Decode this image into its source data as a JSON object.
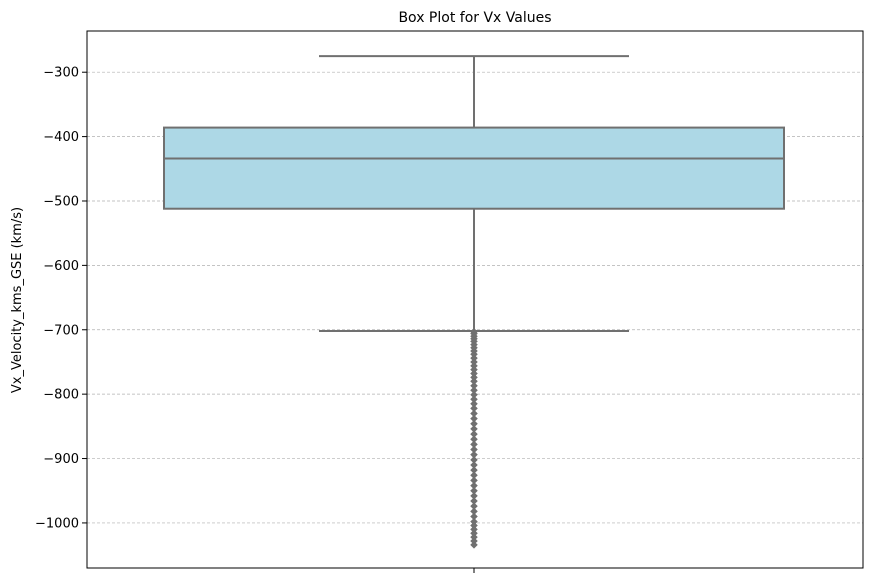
{
  "chart_data": {
    "type": "box",
    "title": "Box Plot for Vx Values",
    "xlabel": "",
    "ylabel": "Vx_Velocity_kms_GSE (km/s)",
    "ylim": [
      -1070,
      -236
    ],
    "yticks": [
      -300,
      -400,
      -500,
      -600,
      -700,
      -800,
      -900,
      -1000
    ],
    "ytick_labels": [
      "−300",
      "−400",
      "−500",
      "−600",
      "−700",
      "−800",
      "−900",
      "−1000"
    ],
    "grid": "y-dashed",
    "box": {
      "whisker_high": -275,
      "q3": -386,
      "median": -434,
      "q1": -512,
      "whisker_low": -702
    },
    "outliers": [
      -703,
      -706,
      -710,
      -714,
      -718,
      -723,
      -728,
      -733,
      -738,
      -744,
      -750,
      -756,
      -762,
      -768,
      -774,
      -780,
      -787,
      -794,
      -801,
      -808,
      -815,
      -822,
      -830,
      -838,
      -846,
      -854,
      -862,
      -870,
      -878,
      -886,
      -894,
      -902,
      -910,
      -918,
      -926,
      -934,
      -942,
      -950,
      -958,
      -966,
      -974,
      -982,
      -990,
      -998,
      -1004,
      -1010,
      -1016,
      -1022,
      -1028,
      -1034
    ],
    "colors": {
      "box_fill": "#add8e6",
      "box_line": "#707070",
      "grid": "#b0b0b0",
      "outlier": "#707070"
    }
  }
}
